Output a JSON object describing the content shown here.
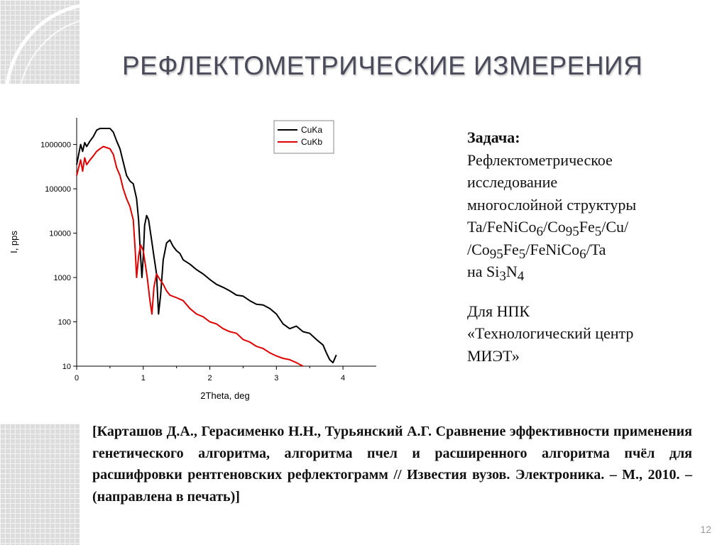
{
  "slide": {
    "title": "РЕФЛЕКТОМЕТРИЧЕСКИЕ ИЗМЕРЕНИЯ",
    "page_number": "12"
  },
  "task": {
    "heading": "Задача:",
    "line1": "Рефлектометрическое",
    "line2": "исследование",
    "line3": "многослойной структуры",
    "line4": {
      "a": "Ta/FeNiCo",
      "s1": "6",
      "b": "/Co",
      "s2": "95",
      "c": "Fe",
      "s3": "5",
      "d": "/Cu/"
    },
    "line5": {
      "a": "/Co",
      "s1": "95",
      "b": "Fe",
      "s2": "5",
      "c": "/FeNiCo",
      "s3": "6",
      "d": "/Ta"
    },
    "line6": {
      "a": "на Si",
      "s1": "3",
      "b": "N",
      "s2": "4"
    },
    "client1": "Для НПК",
    "client2": "«Технологический центр",
    "client3": "МИЭТ»"
  },
  "reference": "[Карташов Д.А., Герасименко Н.Н., Турьянский А.Г. Сравнение эффективности применения генетического алгоритма, алгоритма пчел и расширенного алгоритма пчёл для расшифровки рентгеновских рефлектограмм // Известия вузов. Электроника. – М., 2010. – (направлена в печать)]",
  "colors": {
    "title": "#4a4a5a",
    "series_cuka": "#000000",
    "series_cukb": "#e00000",
    "decor_grid": "#dcdcdc"
  },
  "chart_data": {
    "type": "line",
    "xlabel": "2Theta, deg",
    "ylabel": "I, pps",
    "xlim": [
      0,
      4.5
    ],
    "ylim": [
      10,
      4000000
    ],
    "y_scale": "log",
    "x_ticks": [
      "0",
      "1",
      "2",
      "3",
      "4"
    ],
    "y_ticks": [
      "10",
      "100",
      "1000",
      "10000",
      "100000",
      "1000000"
    ],
    "legend_position": "top-right",
    "grid": false,
    "series": [
      {
        "name": "CuKa",
        "color": "#000000",
        "points": [
          [
            0.0,
            350000
          ],
          [
            0.03,
            600000
          ],
          [
            0.06,
            1000000
          ],
          [
            0.09,
            700000
          ],
          [
            0.12,
            1100000
          ],
          [
            0.15,
            900000
          ],
          [
            0.2,
            1200000
          ],
          [
            0.25,
            1500000
          ],
          [
            0.3,
            2100000
          ],
          [
            0.35,
            2300000
          ],
          [
            0.4,
            2300000
          ],
          [
            0.45,
            2300000
          ],
          [
            0.5,
            2300000
          ],
          [
            0.55,
            1900000
          ],
          [
            0.6,
            1200000
          ],
          [
            0.65,
            800000
          ],
          [
            0.7,
            400000
          ],
          [
            0.75,
            200000
          ],
          [
            0.8,
            150000
          ],
          [
            0.85,
            130000
          ],
          [
            0.9,
            60000
          ],
          [
            0.93,
            20000
          ],
          [
            0.96,
            3000
          ],
          [
            0.98,
            1000
          ],
          [
            1.0,
            3000
          ],
          [
            1.02,
            15000
          ],
          [
            1.05,
            25000
          ],
          [
            1.08,
            20000
          ],
          [
            1.12,
            8000
          ],
          [
            1.16,
            3000
          ],
          [
            1.2,
            1200
          ],
          [
            1.23,
            150
          ],
          [
            1.26,
            400
          ],
          [
            1.3,
            2500
          ],
          [
            1.35,
            6000
          ],
          [
            1.4,
            7000
          ],
          [
            1.45,
            5000
          ],
          [
            1.5,
            4000
          ],
          [
            1.55,
            3500
          ],
          [
            1.6,
            2500
          ],
          [
            1.7,
            2000
          ],
          [
            1.8,
            1500
          ],
          [
            1.9,
            1200
          ],
          [
            2.0,
            900
          ],
          [
            2.1,
            700
          ],
          [
            2.2,
            600
          ],
          [
            2.3,
            500
          ],
          [
            2.4,
            400
          ],
          [
            2.5,
            380
          ],
          [
            2.6,
            300
          ],
          [
            2.7,
            250
          ],
          [
            2.8,
            240
          ],
          [
            2.9,
            200
          ],
          [
            3.0,
            150
          ],
          [
            3.1,
            90
          ],
          [
            3.2,
            70
          ],
          [
            3.3,
            80
          ],
          [
            3.4,
            60
          ],
          [
            3.5,
            55
          ],
          [
            3.6,
            40
          ],
          [
            3.7,
            30
          ],
          [
            3.75,
            20
          ],
          [
            3.8,
            14
          ],
          [
            3.85,
            12
          ],
          [
            3.9,
            18
          ]
        ]
      },
      {
        "name": "CuKb",
        "color": "#e00000",
        "points": [
          [
            0.0,
            200000
          ],
          [
            0.03,
            300000
          ],
          [
            0.06,
            450000
          ],
          [
            0.09,
            250000
          ],
          [
            0.12,
            500000
          ],
          [
            0.15,
            350000
          ],
          [
            0.2,
            450000
          ],
          [
            0.25,
            550000
          ],
          [
            0.3,
            700000
          ],
          [
            0.35,
            800000
          ],
          [
            0.4,
            900000
          ],
          [
            0.45,
            850000
          ],
          [
            0.5,
            800000
          ],
          [
            0.55,
            600000
          ],
          [
            0.6,
            300000
          ],
          [
            0.65,
            200000
          ],
          [
            0.7,
            100000
          ],
          [
            0.75,
            60000
          ],
          [
            0.8,
            40000
          ],
          [
            0.85,
            20000
          ],
          [
            0.88,
            4000
          ],
          [
            0.9,
            1000
          ],
          [
            0.93,
            3000
          ],
          [
            0.96,
            5500
          ],
          [
            1.0,
            4000
          ],
          [
            1.03,
            2000
          ],
          [
            1.06,
            1000
          ],
          [
            1.1,
            300
          ],
          [
            1.13,
            150
          ],
          [
            1.16,
            600
          ],
          [
            1.2,
            1200
          ],
          [
            1.25,
            900
          ],
          [
            1.3,
            700
          ],
          [
            1.35,
            500
          ],
          [
            1.4,
            400
          ],
          [
            1.5,
            350
          ],
          [
            1.6,
            300
          ],
          [
            1.7,
            200
          ],
          [
            1.8,
            150
          ],
          [
            1.9,
            130
          ],
          [
            2.0,
            100
          ],
          [
            2.1,
            90
          ],
          [
            2.2,
            70
          ],
          [
            2.3,
            60
          ],
          [
            2.4,
            55
          ],
          [
            2.5,
            40
          ],
          [
            2.6,
            35
          ],
          [
            2.7,
            28
          ],
          [
            2.8,
            25
          ],
          [
            2.9,
            20
          ],
          [
            3.0,
            17
          ],
          [
            3.1,
            15
          ],
          [
            3.2,
            14
          ],
          [
            3.3,
            12
          ],
          [
            3.4,
            10
          ]
        ]
      }
    ]
  }
}
